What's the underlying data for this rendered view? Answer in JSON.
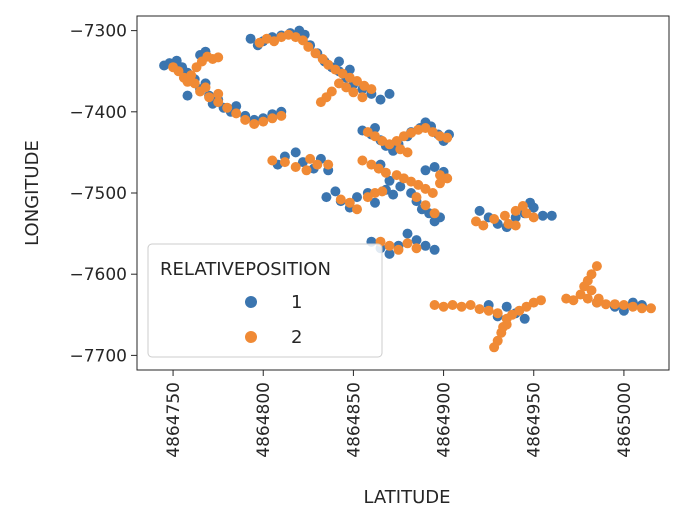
{
  "chart_data": {
    "type": "scatter",
    "xlabel": "LATITUDE",
    "ylabel": "LONGITUDE",
    "xlim": [
      4864730,
      4865025
    ],
    "ylim": [
      -7718,
      -7282
    ],
    "xticks": [
      "4864750",
      "4864800",
      "4864850",
      "4864900",
      "4864950",
      "4865000"
    ],
    "xtick_values": [
      4864750,
      4864800,
      4864850,
      4864900,
      4864950,
      4865000
    ],
    "yticks": [
      "−7300",
      "−7400",
      "−7500",
      "−7600",
      "−7700"
    ],
    "ytick_values": [
      -7300,
      -7400,
      -7500,
      -7600,
      -7700
    ],
    "grid": false,
    "legend": {
      "title": "RELATIVEPOSITION",
      "placement": "lower-left"
    },
    "series": [
      {
        "name": "1",
        "color": "#3b75af",
        "points": [
          [
            4864745,
            -7343
          ],
          [
            4864748,
            -7340
          ],
          [
            4864752,
            -7337
          ],
          [
            4864755,
            -7345
          ],
          [
            4864758,
            -7352
          ],
          [
            4864762,
            -7360
          ],
          [
            4864765,
            -7372
          ],
          [
            4864768,
            -7365
          ],
          [
            4864770,
            -7380
          ],
          [
            4864772,
            -7390
          ],
          [
            4864775,
            -7385
          ],
          [
            4864778,
            -7395
          ],
          [
            4864782,
            -7400
          ],
          [
            4864785,
            -7393
          ],
          [
            4864790,
            -7405
          ],
          [
            4864795,
            -7410
          ],
          [
            4864800,
            -7408
          ],
          [
            4864805,
            -7403
          ],
          [
            4864810,
            -7400
          ],
          [
            4864765,
            -7330
          ],
          [
            4864768,
            -7326
          ],
          [
            4864758,
            -7380
          ],
          [
            4864793,
            -7310
          ],
          [
            4864797,
            -7318
          ],
          [
            4864800,
            -7313
          ],
          [
            4864805,
            -7308
          ],
          [
            4864810,
            -7306
          ],
          [
            4864815,
            -7303
          ],
          [
            4864820,
            -7300
          ],
          [
            4864823,
            -7305
          ],
          [
            4864826,
            -7318
          ],
          [
            4864830,
            -7328
          ],
          [
            4864834,
            -7338
          ],
          [
            4864838,
            -7345
          ],
          [
            4864842,
            -7350
          ],
          [
            4864846,
            -7358
          ],
          [
            4864850,
            -7366
          ],
          [
            4864855,
            -7372
          ],
          [
            4864860,
            -7378
          ],
          [
            4864865,
            -7385
          ],
          [
            4864870,
            -7378
          ],
          [
            4864842,
            -7338
          ],
          [
            4864848,
            -7348
          ],
          [
            4864855,
            -7423
          ],
          [
            4864860,
            -7428
          ],
          [
            4864862,
            -7420
          ],
          [
            4864865,
            -7435
          ],
          [
            4864868,
            -7442
          ],
          [
            4864872,
            -7448
          ],
          [
            4864875,
            -7440
          ],
          [
            4864880,
            -7430
          ],
          [
            4864882,
            -7425
          ],
          [
            4864887,
            -7420
          ],
          [
            4864890,
            -7413
          ],
          [
            4864893,
            -7418
          ],
          [
            4864897,
            -7428
          ],
          [
            4864900,
            -7436
          ],
          [
            4864903,
            -7428
          ],
          [
            4864865,
            -7465
          ],
          [
            4864870,
            -7485
          ],
          [
            4864812,
            -7455
          ],
          [
            4864818,
            -7450
          ],
          [
            4864822,
            -7462
          ],
          [
            4864828,
            -7470
          ],
          [
            4864832,
            -7458
          ],
          [
            4864836,
            -7472
          ],
          [
            4864808,
            -7465
          ],
          [
            4864835,
            -7505
          ],
          [
            4864840,
            -7498
          ],
          [
            4864843,
            -7510
          ],
          [
            4864848,
            -7518
          ],
          [
            4864852,
            -7505
          ],
          [
            4864858,
            -7500
          ],
          [
            4864862,
            -7512
          ],
          [
            4864868,
            -7496
          ],
          [
            4864872,
            -7502
          ],
          [
            4864876,
            -7492
          ],
          [
            4864882,
            -7500
          ],
          [
            4864885,
            -7510
          ],
          [
            4864888,
            -7520
          ],
          [
            4864892,
            -7525
          ],
          [
            4864895,
            -7535
          ],
          [
            4864898,
            -7530
          ],
          [
            4864890,
            -7472
          ],
          [
            4864895,
            -7468
          ],
          [
            4864900,
            -7474
          ],
          [
            4864860,
            -7560
          ],
          [
            4864865,
            -7568
          ],
          [
            4864870,
            -7575
          ],
          [
            4864875,
            -7565
          ],
          [
            4864880,
            -7550
          ],
          [
            4864885,
            -7558
          ],
          [
            4864890,
            -7565
          ],
          [
            4864895,
            -7570
          ],
          [
            4864920,
            -7522
          ],
          [
            4864925,
            -7530
          ],
          [
            4864930,
            -7538
          ],
          [
            4864935,
            -7542
          ],
          [
            4864940,
            -7530
          ],
          [
            4864945,
            -7525
          ],
          [
            4864950,
            -7518
          ],
          [
            4864955,
            -7528
          ],
          [
            4864960,
            -7528
          ],
          [
            4864948,
            -7512
          ],
          [
            4864925,
            -7638
          ],
          [
            4864930,
            -7652
          ],
          [
            4864935,
            -7640
          ],
          [
            4864940,
            -7648
          ],
          [
            4864945,
            -7655
          ],
          [
            4864985,
            -7635
          ],
          [
            4864995,
            -7640
          ],
          [
            4865005,
            -7635
          ],
          [
            4865010,
            -7638
          ],
          [
            4865000,
            -7645
          ]
        ]
      },
      {
        "name": "2",
        "color": "#f08a35",
        "points": [
          [
            4864750,
            -7345
          ],
          [
            4864753,
            -7350
          ],
          [
            4864756,
            -7358
          ],
          [
            4864758,
            -7363
          ],
          [
            4864760,
            -7355
          ],
          [
            4864763,
            -7345
          ],
          [
            4864766,
            -7338
          ],
          [
            4864769,
            -7332
          ],
          [
            4864772,
            -7335
          ],
          [
            4864775,
            -7333
          ],
          [
            4864762,
            -7365
          ],
          [
            4864765,
            -7375
          ],
          [
            4864770,
            -7382
          ],
          [
            4864775,
            -7388
          ],
          [
            4864780,
            -7395
          ],
          [
            4864785,
            -7402
          ],
          [
            4864790,
            -7410
          ],
          [
            4864795,
            -7415
          ],
          [
            4864800,
            -7412
          ],
          [
            4864805,
            -7408
          ],
          [
            4864810,
            -7405
          ],
          [
            4864768,
            -7370
          ],
          [
            4864775,
            -7378
          ],
          [
            4864798,
            -7315
          ],
          [
            4864802,
            -7310
          ],
          [
            4864806,
            -7313
          ],
          [
            4864810,
            -7308
          ],
          [
            4864814,
            -7305
          ],
          [
            4864818,
            -7308
          ],
          [
            4864822,
            -7312
          ],
          [
            4864825,
            -7320
          ],
          [
            4864829,
            -7328
          ],
          [
            4864833,
            -7335
          ],
          [
            4864836,
            -7342
          ],
          [
            4864840,
            -7348
          ],
          [
            4864844,
            -7353
          ],
          [
            4864848,
            -7358
          ],
          [
            4864852,
            -7362
          ],
          [
            4864856,
            -7368
          ],
          [
            4864860,
            -7372
          ],
          [
            4864846,
            -7370
          ],
          [
            4864842,
            -7365
          ],
          [
            4864838,
            -7375
          ],
          [
            4864835,
            -7382
          ],
          [
            4864832,
            -7388
          ],
          [
            4864850,
            -7376
          ],
          [
            4864855,
            -7382
          ],
          [
            4864858,
            -7425
          ],
          [
            4864862,
            -7430
          ],
          [
            4864866,
            -7436
          ],
          [
            4864870,
            -7440
          ],
          [
            4864874,
            -7436
          ],
          [
            4864878,
            -7430
          ],
          [
            4864882,
            -7426
          ],
          [
            4864886,
            -7422
          ],
          [
            4864890,
            -7420
          ],
          [
            4864894,
            -7425
          ],
          [
            4864898,
            -7430
          ],
          [
            4864902,
            -7432
          ],
          [
            4864876,
            -7446
          ],
          [
            4864880,
            -7450
          ],
          [
            4864805,
            -7460
          ],
          [
            4864812,
            -7462
          ],
          [
            4864818,
            -7468
          ],
          [
            4864824,
            -7472
          ],
          [
            4864830,
            -7465
          ],
          [
            4864836,
            -7465
          ],
          [
            4864826,
            -7458
          ],
          [
            4864843,
            -7508
          ],
          [
            4864848,
            -7512
          ],
          [
            4864852,
            -7520
          ],
          [
            4864858,
            -7505
          ],
          [
            4864862,
            -7500
          ],
          [
            4864866,
            -7498
          ],
          [
            4864855,
            -7460
          ],
          [
            4864860,
            -7465
          ],
          [
            4864864,
            -7470
          ],
          [
            4864868,
            -7475
          ],
          [
            4864874,
            -7478
          ],
          [
            4864878,
            -7482
          ],
          [
            4864882,
            -7486
          ],
          [
            4864886,
            -7490
          ],
          [
            4864890,
            -7495
          ],
          [
            4864894,
            -7500
          ],
          [
            4864898,
            -7478
          ],
          [
            4864902,
            -7482
          ],
          [
            4864898,
            -7488
          ],
          [
            4864885,
            -7505
          ],
          [
            4864890,
            -7515
          ],
          [
            4864895,
            -7525
          ],
          [
            4864865,
            -7560
          ],
          [
            4864870,
            -7565
          ],
          [
            4864875,
            -7570
          ],
          [
            4864880,
            -7562
          ],
          [
            4864885,
            -7568
          ],
          [
            4864918,
            -7535
          ],
          [
            4864922,
            -7540
          ],
          [
            4864928,
            -7532
          ],
          [
            4864934,
            -7528
          ],
          [
            4864940,
            -7522
          ],
          [
            4864944,
            -7516
          ],
          [
            4864946,
            -7525
          ],
          [
            4864950,
            -7530
          ],
          [
            4864940,
            -7540
          ],
          [
            4864936,
            -7538
          ],
          [
            4864895,
            -7638
          ],
          [
            4864900,
            -7640
          ],
          [
            4864905,
            -7638
          ],
          [
            4864910,
            -7640
          ],
          [
            4864915,
            -7638
          ],
          [
            4864920,
            -7643
          ],
          [
            4864925,
            -7645
          ],
          [
            4864930,
            -7648
          ],
          [
            4864935,
            -7655
          ],
          [
            4864938,
            -7650
          ],
          [
            4864942,
            -7645
          ],
          [
            4864946,
            -7640
          ],
          [
            4864950,
            -7635
          ],
          [
            4864954,
            -7632
          ],
          [
            4864935,
            -7662
          ],
          [
            4864932,
            -7672
          ],
          [
            4864930,
            -7682
          ],
          [
            4864928,
            -7690
          ],
          [
            4864933,
            -7665
          ],
          [
            4864968,
            -7630
          ],
          [
            4864972,
            -7632
          ],
          [
            4864976,
            -7625
          ],
          [
            4864978,
            -7615
          ],
          [
            4864980,
            -7608
          ],
          [
            4864982,
            -7600
          ],
          [
            4864985,
            -7590
          ],
          [
            4864980,
            -7630
          ],
          [
            4864985,
            -7635
          ],
          [
            4864990,
            -7637
          ],
          [
            4864995,
            -7637
          ],
          [
            4865000,
            -7638
          ],
          [
            4865005,
            -7640
          ],
          [
            4865010,
            -7642
          ],
          [
            4865015,
            -7642
          ],
          [
            4864982,
            -7620
          ],
          [
            4864986,
            -7630
          ]
        ]
      }
    ]
  }
}
